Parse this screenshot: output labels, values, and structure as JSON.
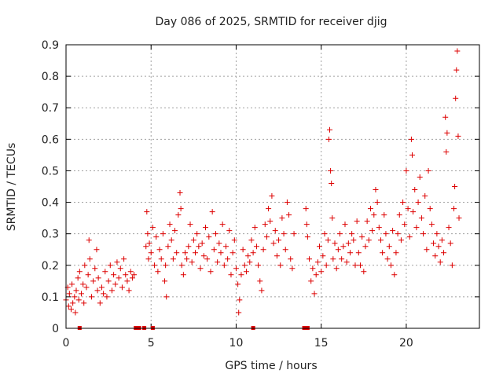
{
  "chart_data": {
    "type": "scatter",
    "title": "Day 086 of 2025, SRMTID for receiver djig",
    "xlabel": "GPS time / hours",
    "ylabel": "SRMTID / TECUs",
    "xlim": [
      0,
      24.3
    ],
    "ylim": [
      0,
      0.9
    ],
    "x_ticks": [
      0,
      5,
      10,
      15,
      20
    ],
    "x_tick_labels": [
      "0",
      "5",
      "10",
      "15",
      "20"
    ],
    "y_ticks": [
      0,
      0.1,
      0.2,
      0.3,
      0.4,
      0.5,
      0.6,
      0.7,
      0.8,
      0.9
    ],
    "y_tick_labels": [
      "0",
      "0.1",
      "0.2",
      "0.3",
      "0.4",
      "0.5",
      "0.6",
      "0.7",
      "0.8",
      "0.9"
    ],
    "grid": true,
    "marker": "+",
    "color": "#dd0000",
    "zero_markers_x": [
      0.8,
      4.1,
      4.3,
      4.6,
      5.1,
      11.0,
      14.0,
      14.2
    ],
    "series": [
      {
        "name": "SRMTID",
        "points": [
          [
            0.0,
            0.09
          ],
          [
            0.1,
            0.13
          ],
          [
            0.15,
            0.07
          ],
          [
            0.2,
            0.11
          ],
          [
            0.3,
            0.06
          ],
          [
            0.35,
            0.14
          ],
          [
            0.4,
            0.08
          ],
          [
            0.5,
            0.1
          ],
          [
            0.55,
            0.05
          ],
          [
            0.6,
            0.12
          ],
          [
            0.7,
            0.16
          ],
          [
            0.75,
            0.09
          ],
          [
            0.8,
            0.18
          ],
          [
            0.9,
            0.11
          ],
          [
            1.0,
            0.14
          ],
          [
            1.05,
            0.08
          ],
          [
            1.1,
            0.2
          ],
          [
            1.2,
            0.13
          ],
          [
            1.3,
            0.17
          ],
          [
            1.35,
            0.28
          ],
          [
            1.4,
            0.22
          ],
          [
            1.5,
            0.1
          ],
          [
            1.6,
            0.15
          ],
          [
            1.7,
            0.19
          ],
          [
            1.8,
            0.25
          ],
          [
            1.85,
            0.12
          ],
          [
            1.9,
            0.16
          ],
          [
            2.0,
            0.08
          ],
          [
            2.1,
            0.13
          ],
          [
            2.2,
            0.11
          ],
          [
            2.3,
            0.18
          ],
          [
            2.4,
            0.1
          ],
          [
            2.5,
            0.15
          ],
          [
            2.6,
            0.2
          ],
          [
            2.7,
            0.12
          ],
          [
            2.8,
            0.17
          ],
          [
            2.9,
            0.14
          ],
          [
            3.0,
            0.21
          ],
          [
            3.1,
            0.16
          ],
          [
            3.2,
            0.19
          ],
          [
            3.3,
            0.13
          ],
          [
            3.4,
            0.22
          ],
          [
            3.5,
            0.17
          ],
          [
            3.6,
            0.15
          ],
          [
            3.7,
            0.12
          ],
          [
            3.8,
            0.18
          ],
          [
            3.9,
            0.16
          ],
          [
            4.0,
            0.17
          ],
          [
            4.7,
            0.26
          ],
          [
            4.75,
            0.37
          ],
          [
            4.8,
            0.3
          ],
          [
            4.85,
            0.22
          ],
          [
            4.9,
            0.27
          ],
          [
            5.0,
            0.24
          ],
          [
            5.1,
            0.32
          ],
          [
            5.2,
            0.2
          ],
          [
            5.3,
            0.29
          ],
          [
            5.4,
            0.18
          ],
          [
            5.5,
            0.25
          ],
          [
            5.6,
            0.22
          ],
          [
            5.7,
            0.3
          ],
          [
            5.8,
            0.15
          ],
          [
            5.85,
            0.2
          ],
          [
            5.9,
            0.1
          ],
          [
            6.0,
            0.26
          ],
          [
            6.1,
            0.33
          ],
          [
            6.2,
            0.28
          ],
          [
            6.3,
            0.22
          ],
          [
            6.4,
            0.31
          ],
          [
            6.5,
            0.24
          ],
          [
            6.6,
            0.36
          ],
          [
            6.7,
            0.43
          ],
          [
            6.75,
            0.38
          ],
          [
            6.8,
            0.2
          ],
          [
            6.9,
            0.17
          ],
          [
            7.0,
            0.24
          ],
          [
            7.1,
            0.22
          ],
          [
            7.2,
            0.26
          ],
          [
            7.3,
            0.33
          ],
          [
            7.4,
            0.21
          ],
          [
            7.5,
            0.28
          ],
          [
            7.6,
            0.24
          ],
          [
            7.7,
            0.3
          ],
          [
            7.8,
            0.26
          ],
          [
            7.9,
            0.19
          ],
          [
            8.0,
            0.27
          ],
          [
            8.1,
            0.23
          ],
          [
            8.2,
            0.32
          ],
          [
            8.3,
            0.22
          ],
          [
            8.4,
            0.29
          ],
          [
            8.5,
            0.18
          ],
          [
            8.6,
            0.37
          ],
          [
            8.7,
            0.25
          ],
          [
            8.8,
            0.3
          ],
          [
            8.9,
            0.21
          ],
          [
            9.0,
            0.27
          ],
          [
            9.1,
            0.24
          ],
          [
            9.2,
            0.33
          ],
          [
            9.3,
            0.2
          ],
          [
            9.4,
            0.26
          ],
          [
            9.5,
            0.22
          ],
          [
            9.6,
            0.31
          ],
          [
            9.7,
            0.17
          ],
          [
            9.8,
            0.24
          ],
          [
            9.9,
            0.28
          ],
          [
            10.0,
            0.19
          ],
          [
            10.1,
            0.14
          ],
          [
            10.15,
            0.05
          ],
          [
            10.2,
            0.09
          ],
          [
            10.3,
            0.17
          ],
          [
            10.4,
            0.25
          ],
          [
            10.5,
            0.2
          ],
          [
            10.6,
            0.18
          ],
          [
            10.7,
            0.23
          ],
          [
            10.8,
            0.21
          ],
          [
            10.9,
            0.28
          ],
          [
            11.0,
            0.24
          ],
          [
            11.1,
            0.32
          ],
          [
            11.2,
            0.26
          ],
          [
            11.3,
            0.2
          ],
          [
            11.4,
            0.15
          ],
          [
            11.5,
            0.12
          ],
          [
            11.6,
            0.25
          ],
          [
            11.7,
            0.33
          ],
          [
            11.8,
            0.29
          ],
          [
            11.9,
            0.38
          ],
          [
            12.0,
            0.34
          ],
          [
            12.1,
            0.42
          ],
          [
            12.2,
            0.27
          ],
          [
            12.3,
            0.31
          ],
          [
            12.4,
            0.23
          ],
          [
            12.5,
            0.28
          ],
          [
            12.6,
            0.2
          ],
          [
            12.7,
            0.35
          ],
          [
            12.8,
            0.3
          ],
          [
            12.9,
            0.25
          ],
          [
            13.0,
            0.4
          ],
          [
            13.1,
            0.36
          ],
          [
            13.2,
            0.22
          ],
          [
            13.3,
            0.19
          ],
          [
            13.4,
            0.3
          ],
          [
            14.1,
            0.38
          ],
          [
            14.15,
            0.33
          ],
          [
            14.2,
            0.29
          ],
          [
            14.3,
            0.22
          ],
          [
            14.4,
            0.15
          ],
          [
            14.5,
            0.19
          ],
          [
            14.6,
            0.11
          ],
          [
            14.7,
            0.17
          ],
          [
            14.8,
            0.21
          ],
          [
            14.9,
            0.26
          ],
          [
            15.0,
            0.18
          ],
          [
            15.1,
            0.23
          ],
          [
            15.2,
            0.3
          ],
          [
            15.3,
            0.2
          ],
          [
            15.4,
            0.28
          ],
          [
            15.45,
            0.6
          ],
          [
            15.5,
            0.63
          ],
          [
            15.55,
            0.5
          ],
          [
            15.6,
            0.46
          ],
          [
            15.65,
            0.35
          ],
          [
            15.7,
            0.22
          ],
          [
            15.8,
            0.27
          ],
          [
            15.9,
            0.19
          ],
          [
            16.0,
            0.25
          ],
          [
            16.1,
            0.3
          ],
          [
            16.2,
            0.22
          ],
          [
            16.3,
            0.26
          ],
          [
            16.4,
            0.33
          ],
          [
            16.5,
            0.21
          ],
          [
            16.6,
            0.27
          ],
          [
            16.7,
            0.24
          ],
          [
            16.8,
            0.3
          ],
          [
            16.9,
            0.28
          ],
          [
            17.0,
            0.2
          ],
          [
            17.1,
            0.34
          ],
          [
            17.2,
            0.24
          ],
          [
            17.3,
            0.2
          ],
          [
            17.4,
            0.29
          ],
          [
            17.5,
            0.18
          ],
          [
            17.6,
            0.26
          ],
          [
            17.7,
            0.34
          ],
          [
            17.8,
            0.28
          ],
          [
            17.9,
            0.38
          ],
          [
            18.0,
            0.31
          ],
          [
            18.1,
            0.36
          ],
          [
            18.2,
            0.44
          ],
          [
            18.3,
            0.4
          ],
          [
            18.4,
            0.32
          ],
          [
            18.5,
            0.28
          ],
          [
            18.6,
            0.24
          ],
          [
            18.7,
            0.36
          ],
          [
            18.8,
            0.3
          ],
          [
            18.9,
            0.22
          ],
          [
            19.0,
            0.26
          ],
          [
            19.1,
            0.2
          ],
          [
            19.2,
            0.31
          ],
          [
            19.3,
            0.17
          ],
          [
            19.4,
            0.24
          ],
          [
            19.5,
            0.3
          ],
          [
            19.6,
            0.36
          ],
          [
            19.7,
            0.28
          ],
          [
            19.8,
            0.4
          ],
          [
            19.9,
            0.33
          ],
          [
            20.0,
            0.5
          ],
          [
            20.1,
            0.38
          ],
          [
            20.2,
            0.29
          ],
          [
            20.3,
            0.6
          ],
          [
            20.35,
            0.55
          ],
          [
            20.4,
            0.37
          ],
          [
            20.5,
            0.44
          ],
          [
            20.6,
            0.32
          ],
          [
            20.7,
            0.4
          ],
          [
            20.8,
            0.48
          ],
          [
            20.9,
            0.35
          ],
          [
            21.0,
            0.3
          ],
          [
            21.1,
            0.42
          ],
          [
            21.2,
            0.25
          ],
          [
            21.3,
            0.5
          ],
          [
            21.4,
            0.38
          ],
          [
            21.5,
            0.33
          ],
          [
            21.6,
            0.27
          ],
          [
            21.7,
            0.23
          ],
          [
            21.8,
            0.3
          ],
          [
            21.9,
            0.26
          ],
          [
            22.0,
            0.21
          ],
          [
            22.1,
            0.28
          ],
          [
            22.2,
            0.24
          ],
          [
            22.3,
            0.67
          ],
          [
            22.35,
            0.56
          ],
          [
            22.4,
            0.62
          ],
          [
            22.5,
            0.32
          ],
          [
            22.6,
            0.27
          ],
          [
            22.7,
            0.2
          ],
          [
            22.8,
            0.38
          ],
          [
            22.85,
            0.45
          ],
          [
            22.9,
            0.73
          ],
          [
            22.95,
            0.82
          ],
          [
            23.0,
            0.88
          ],
          [
            23.05,
            0.61
          ],
          [
            23.1,
            0.35
          ]
        ]
      }
    ]
  }
}
